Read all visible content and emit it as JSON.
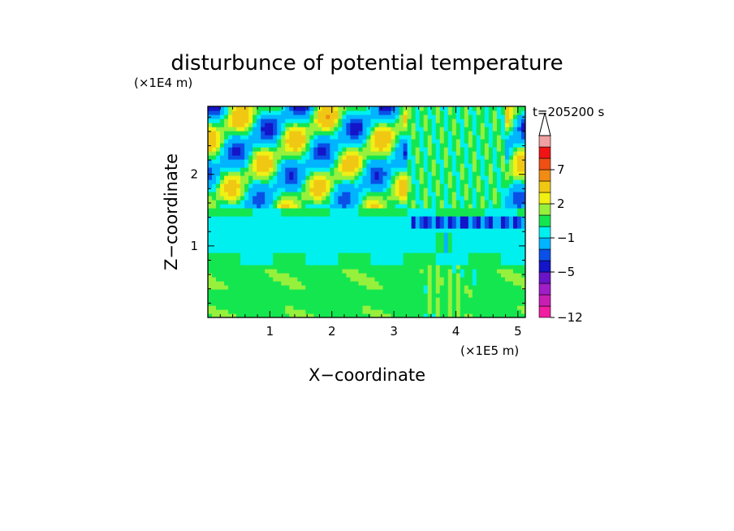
{
  "chart_data": {
    "type": "heatmap",
    "title": "disturbunce of potential temperature",
    "xlabel": "X−coordinate",
    "ylabel": "Z−coordinate",
    "x_unit": "(×1E5 m)",
    "y_unit": "(×1E4 m)",
    "time_label": "t=205200 s",
    "xlim": [
      0,
      5.12
    ],
    "ylim": [
      0,
      2.95
    ],
    "xticks": [
      {
        "value": 1,
        "label": "1"
      },
      {
        "value": 2,
        "label": "2"
      },
      {
        "value": 3,
        "label": "3"
      },
      {
        "value": 4,
        "label": "4"
      },
      {
        "value": 5,
        "label": "5"
      }
    ],
    "yticks": [
      {
        "value": 1,
        "label": "1"
      },
      {
        "value": 2,
        "label": "2"
      }
    ],
    "colorbar": {
      "levels": [
        -12,
        -11,
        -9,
        -7,
        -5,
        -4,
        -3,
        -1,
        0,
        1,
        2,
        3,
        5,
        7,
        9,
        11
      ],
      "labeled": [
        {
          "value": 7,
          "label": "7"
        },
        {
          "value": 2,
          "label": "2"
        },
        {
          "value": -1,
          "label": "−1"
        },
        {
          "value": -5,
          "label": "−5"
        },
        {
          "value": -12,
          "label": "−12"
        }
      ],
      "colors": [
        "#f01ea0",
        "#c81eb4",
        "#a01ec8",
        "#6a14c8",
        "#1414c8",
        "#0a50e6",
        "#00b4ff",
        "#00f0f0",
        "#14e650",
        "#96f03c",
        "#f0f014",
        "#f0c814",
        "#f08c14",
        "#f05014",
        "#f01414",
        "#f0a0a0"
      ],
      "extend": "max"
    },
    "bands": [
      {
        "z": 0.05,
        "value": 0.6
      },
      {
        "z": 0.35,
        "value": 0.8
      },
      {
        "z": 0.65,
        "value": 0.4
      },
      {
        "z": 0.85,
        "value": -0.6
      },
      {
        "z": 1.05,
        "value": -0.8
      },
      {
        "z": 1.25,
        "value": -0.7
      },
      {
        "z": 1.4,
        "value": -0.2
      },
      {
        "z": 1.6,
        "value": 0.3
      },
      {
        "z": 1.8,
        "value": 0.6
      },
      {
        "z": 2.0,
        "value": 0.8
      },
      {
        "z": 2.2,
        "value": 0.7
      },
      {
        "z": 2.4,
        "value": 0.9
      },
      {
        "z": 2.6,
        "value": 1.0
      },
      {
        "z": 2.8,
        "value": 1.1
      }
    ]
  }
}
